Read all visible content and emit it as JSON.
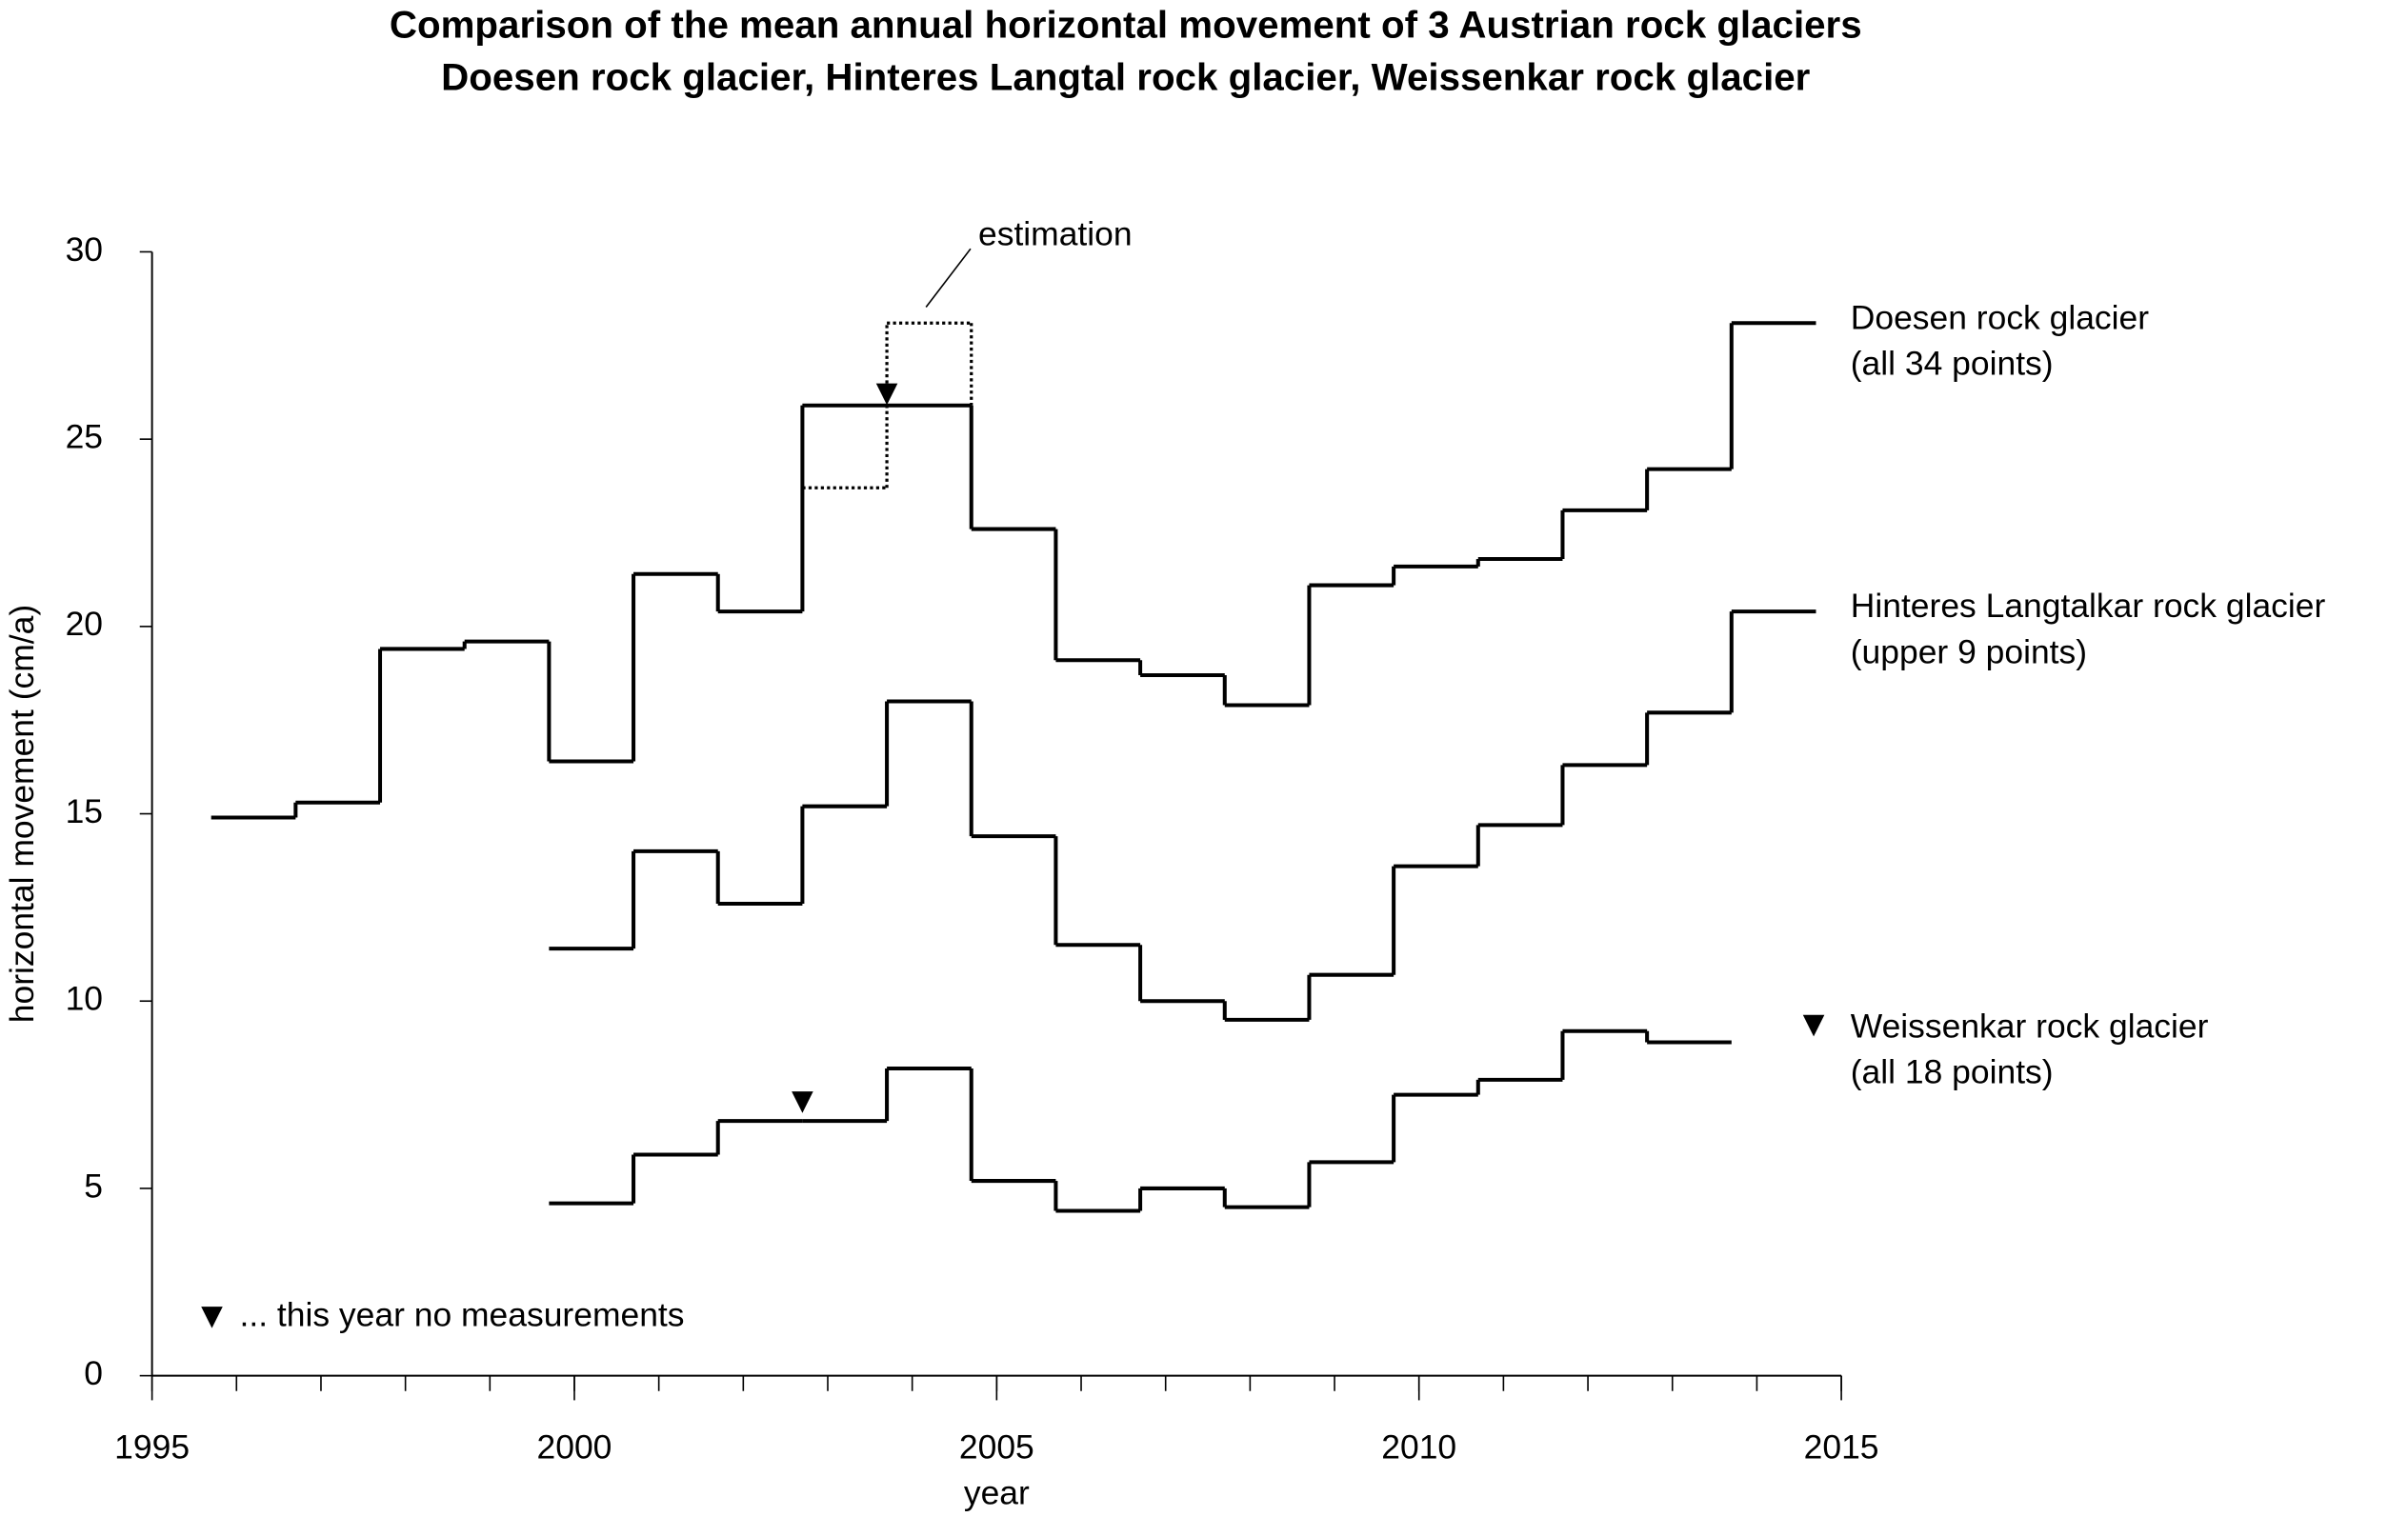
{
  "chart_data": {
    "type": "step",
    "title": "Comparison of the mean annual horizontal movement of 3 Austrian rock glaciers",
    "subtitle": "Doesen rock glacier, Hinteres Langtal rock glacier, Weissenkar rock glacier",
    "x_label": "year",
    "y_label": "horizontal movement (cm/a)",
    "xlim": [
      1995,
      2015
    ],
    "xticks": [
      1995,
      2000,
      2005,
      2010,
      2015
    ],
    "ylim": [
      0,
      30
    ],
    "yticks": [
      0,
      5,
      10,
      15,
      20,
      25,
      30
    ],
    "series": [
      {
        "name": "Doesen rock glacier",
        "note": "(all 34 points)",
        "color": "#000000",
        "x": [
          1995.7,
          1996.7,
          1997.7,
          1998.7,
          1999.7,
          2000.7,
          2001.7,
          2002.7,
          2003.7,
          2004.7,
          2005.7,
          2006.7,
          2007.7,
          2008.7,
          2009.7,
          2010.7,
          2011.7,
          2012.7,
          2013.7
        ],
        "values": [
          14.9,
          15.3,
          19.4,
          19.6,
          16.4,
          21.4,
          20.4,
          25.9,
          25.9,
          22.6,
          19.1,
          18.7,
          17.9,
          21.1,
          21.6,
          21.8,
          23.1,
          24.2,
          28.1
        ]
      },
      {
        "name": "Hinteres Langtalkar rock glacier",
        "note": "(upper 9 points)",
        "color": "#000000",
        "x": [
          1999.7,
          2000.7,
          2001.7,
          2002.7,
          2003.7,
          2004.7,
          2005.7,
          2006.7,
          2007.7,
          2008.7,
          2009.7,
          2010.7,
          2011.7,
          2012.7,
          2013.7
        ],
        "values": [
          11.4,
          14.0,
          12.6,
          15.2,
          18.0,
          14.4,
          11.5,
          10.0,
          9.5,
          10.7,
          13.6,
          14.7,
          16.3,
          17.7,
          20.4
        ]
      },
      {
        "name": "Weissenkar rock glacier",
        "note": "(all 18 points)",
        "color": "#000000",
        "x": [
          1999.7,
          2000.7,
          2001.7,
          2002.7,
          2003.7,
          2004.7,
          2005.7,
          2006.7,
          2007.7,
          2008.7,
          2009.7,
          2010.7,
          2011.7,
          2012.7
        ],
        "values": [
          4.6,
          5.9,
          6.8,
          6.8,
          8.2,
          5.2,
          4.4,
          5.0,
          4.5,
          5.7,
          7.5,
          7.9,
          9.2,
          8.9
        ]
      }
    ],
    "estimation": {
      "label": "estimation",
      "x": [
        2002.7,
        2003.7
      ],
      "values": [
        23.7,
        28.1
      ]
    },
    "no_measurement": {
      "label": "... this year no measurements",
      "markers": [
        {
          "x": 2003.7,
          "y": 26.2
        },
        {
          "x": 2002.7,
          "y": 7.3
        }
      ]
    }
  }
}
